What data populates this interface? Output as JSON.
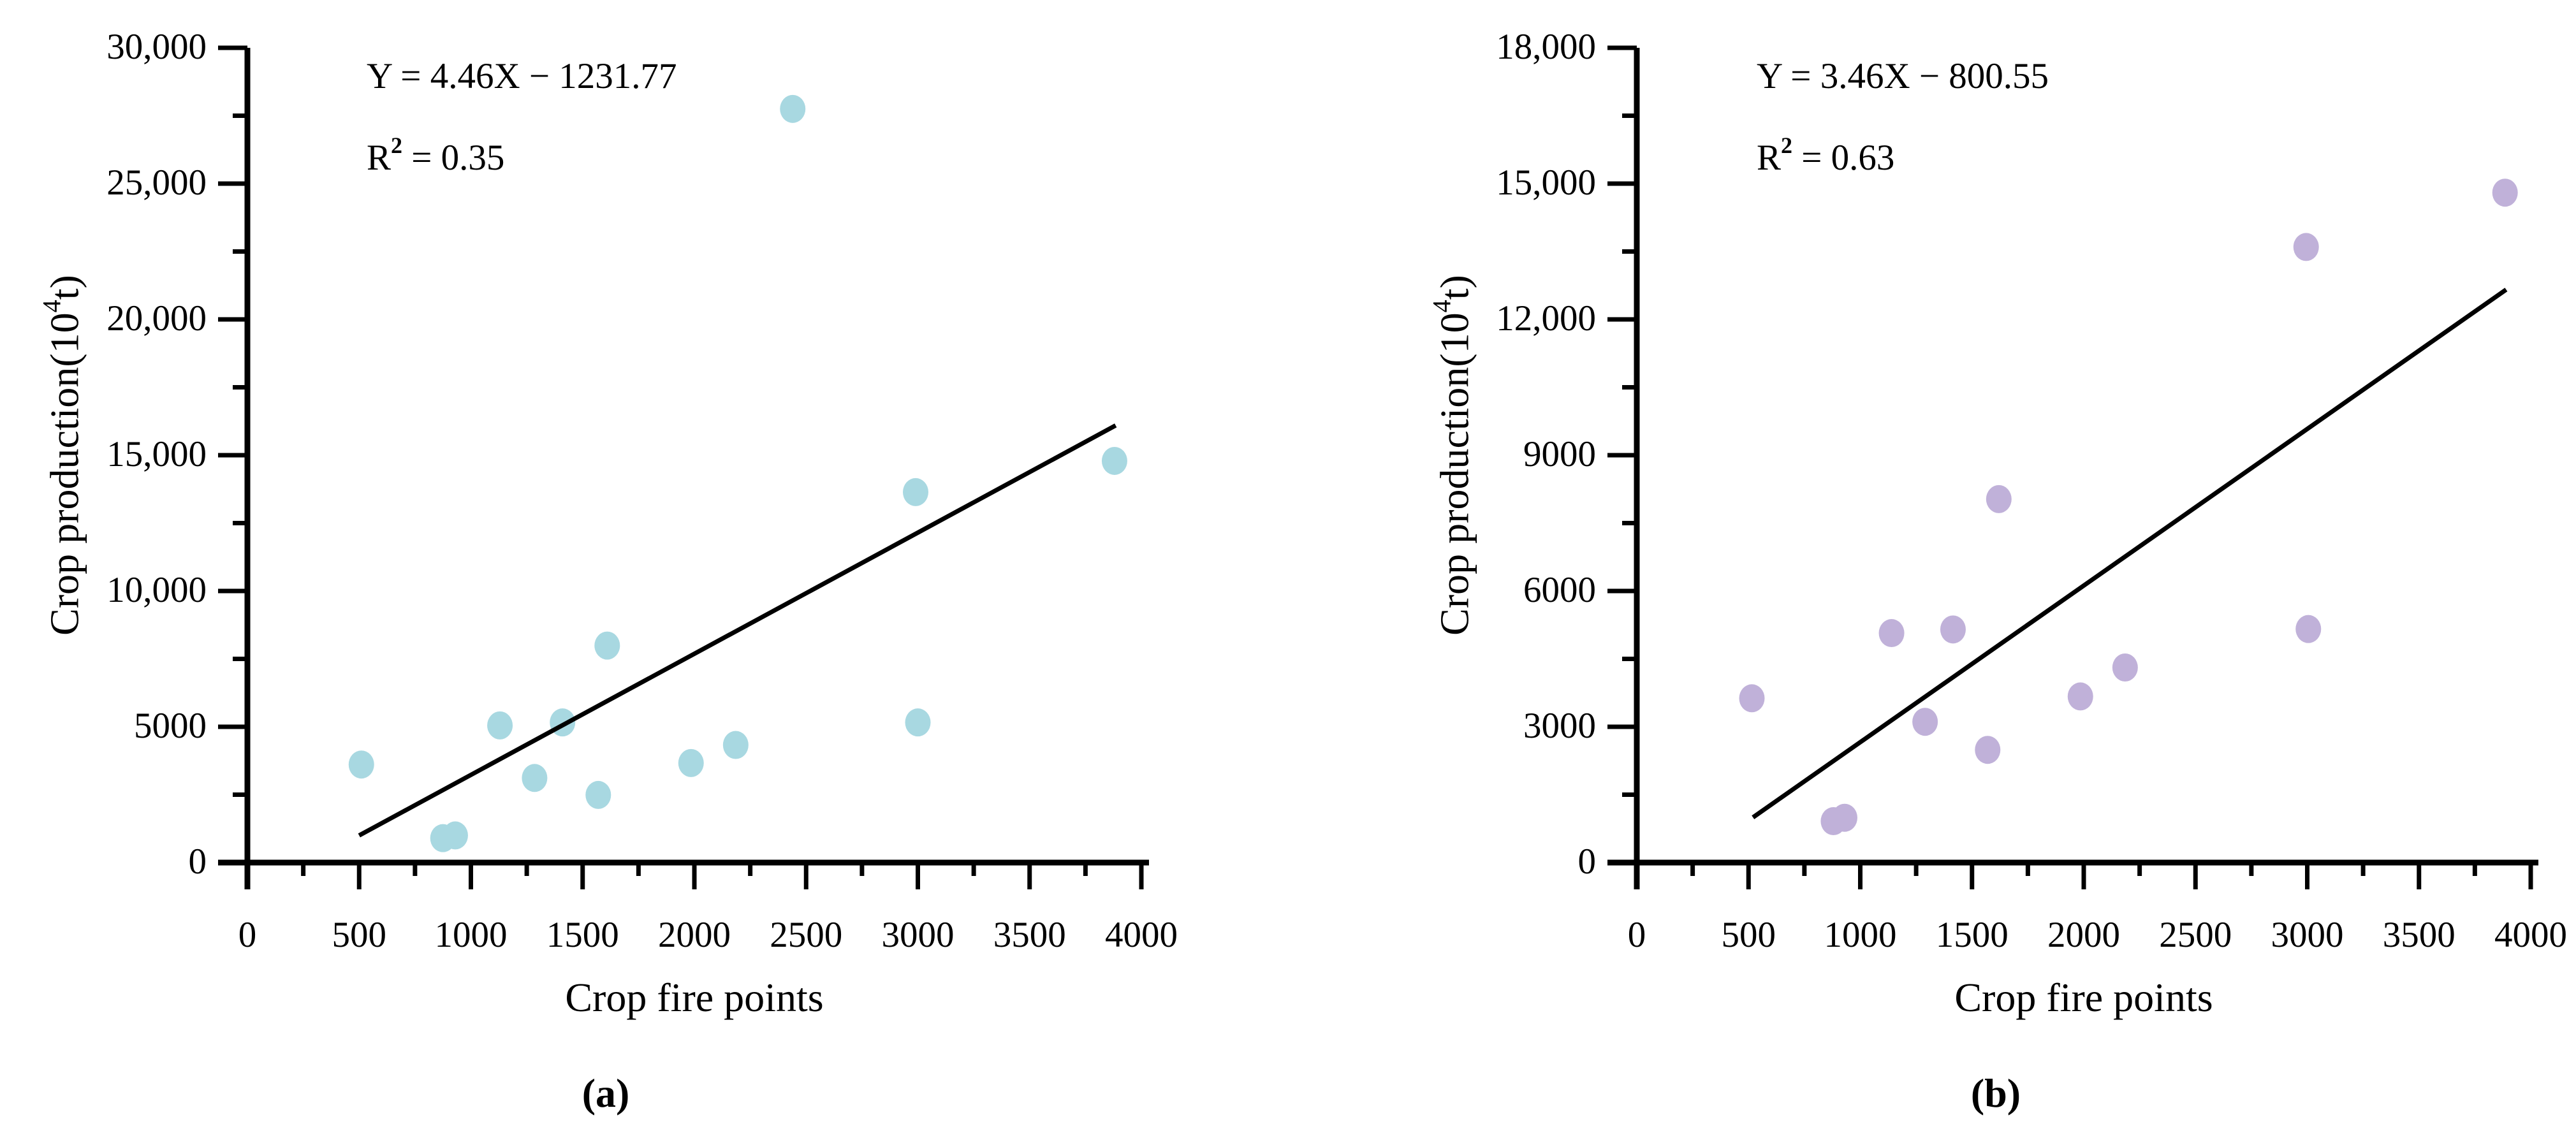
{
  "figure": {
    "background_color": "#ffffff",
    "text_color": "#000000",
    "axis_color": "#000000"
  },
  "chart_data": [
    {
      "type": "scatter",
      "subplot": "a",
      "caption": "(a)",
      "title": "",
      "xlabel": "Crop fire points",
      "ylabel": "Crop production(10⁴t)",
      "ylabel_parts": [
        "Crop production(10",
        "4",
        "t)"
      ],
      "annotation_equation": "Y = 4.46X − 1231.77",
      "annotation_r2": "R² = 0.35",
      "r2_parts": [
        "R",
        "2",
        " = 0.35"
      ],
      "xlim": [
        0,
        4000
      ],
      "ylim": [
        0,
        30000
      ],
      "x_major_ticks": [
        0,
        500,
        1000,
        1500,
        2000,
        2500,
        3000,
        3500,
        4000
      ],
      "x_tick_labels": [
        "0",
        "500",
        "1000",
        "1500",
        "2000",
        "2500",
        "3000",
        "3500",
        "4000"
      ],
      "x_minor_step": 250,
      "y_major_ticks": [
        0,
        5000,
        10000,
        15000,
        20000,
        25000,
        30000
      ],
      "y_tick_labels": [
        "0",
        "5000",
        "10,000",
        "15,000",
        "20,000",
        "25,000",
        "30,000"
      ],
      "y_minor_step": 2500,
      "grid": false,
      "legend": "none",
      "point_color": "#a8d8e1",
      "points": [
        [
          510,
          3610
        ],
        [
          875,
          900
        ],
        [
          930,
          1000
        ],
        [
          1130,
          5050
        ],
        [
          1285,
          3115
        ],
        [
          1410,
          5160
        ],
        [
          1570,
          2490
        ],
        [
          1610,
          7990
        ],
        [
          1985,
          3665
        ],
        [
          2185,
          4330
        ],
        [
          2440,
          27750
        ],
        [
          2990,
          13640
        ],
        [
          3000,
          5160
        ],
        [
          3880,
          14790
        ]
      ],
      "trend_line": {
        "slope": 4.46,
        "intercept": -1231.77,
        "x_start": 500,
        "x_end": 3885,
        "color": "#000000"
      }
    },
    {
      "type": "scatter",
      "subplot": "b",
      "caption": "(b)",
      "title": "",
      "xlabel": "Crop fire points",
      "ylabel": "Crop production(10⁴t)",
      "ylabel_parts": [
        "Crop production(10",
        "4",
        "t)"
      ],
      "annotation_equation": "Y = 3.46X − 800.55",
      "annotation_r2": "R² = 0.63",
      "r2_parts": [
        "R",
        "2",
        " = 0.63"
      ],
      "xlim": [
        0,
        4000
      ],
      "ylim": [
        0,
        18000
      ],
      "x_major_ticks": [
        0,
        500,
        1000,
        1500,
        2000,
        2500,
        3000,
        3500,
        4000
      ],
      "x_tick_labels": [
        "0",
        "500",
        "1000",
        "1500",
        "2000",
        "2500",
        "3000",
        "3500",
        "4000"
      ],
      "x_minor_step": 250,
      "y_major_ticks": [
        0,
        3000,
        6000,
        9000,
        12000,
        15000,
        18000
      ],
      "y_tick_labels": [
        "0",
        "3000",
        "6000",
        "9000",
        "12,000",
        "15,000",
        "18,000"
      ],
      "y_minor_step": 1500,
      "grid": false,
      "legend": "none",
      "point_color": "#c0b1d9",
      "points": [
        [
          515,
          3630
        ],
        [
          880,
          915
        ],
        [
          930,
          990
        ],
        [
          1140,
          5070
        ],
        [
          1290,
          3110
        ],
        [
          1415,
          5150
        ],
        [
          1570,
          2490
        ],
        [
          1620,
          8030
        ],
        [
          1985,
          3670
        ],
        [
          2185,
          4310
        ],
        [
          2995,
          13600
        ],
        [
          3005,
          5160
        ],
        [
          3885,
          14800
        ]
      ],
      "trend_line": {
        "slope": 3.46,
        "intercept": -800.55,
        "x_start": 520,
        "x_end": 3890,
        "color": "#000000"
      }
    }
  ]
}
